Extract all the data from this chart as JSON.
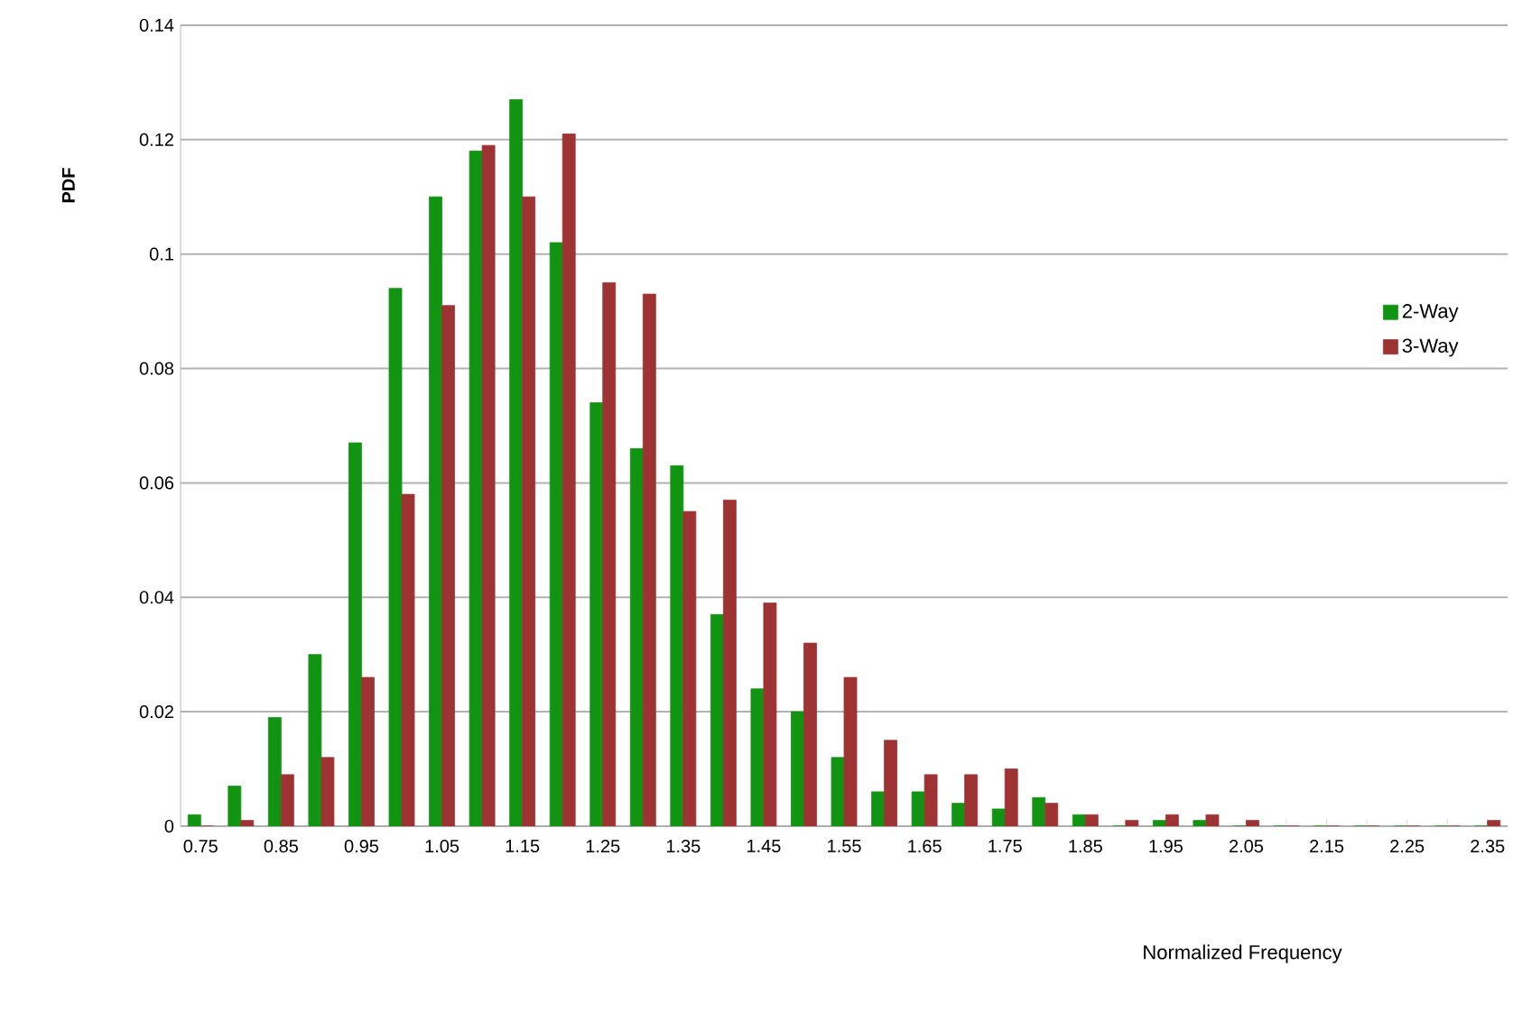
{
  "chart_data": {
    "type": "bar",
    "xlabel": "Normalized Frequency",
    "ylabel": "PDF",
    "categories": [
      "0.75",
      null,
      "0.85",
      null,
      "0.95",
      null,
      "1.05",
      null,
      "1.15",
      null,
      "1.25",
      null,
      "1.35",
      null,
      "1.45",
      null,
      "1.55",
      null,
      "1.65",
      null,
      "1.75",
      null,
      "1.85",
      null,
      "1.95",
      null,
      "2.05",
      null,
      "2.15",
      null,
      "2.25",
      null,
      "2.35"
    ],
    "series": [
      {
        "name": "2-Way",
        "color": "#119411",
        "values": [
          0.002,
          0.007,
          0.019,
          0.03,
          0.067,
          0.094,
          0.11,
          0.118,
          0.127,
          0.102,
          0.074,
          0.066,
          0.063,
          0.037,
          0.024,
          0.02,
          0.012,
          0.006,
          0.006,
          0.004,
          0.003,
          0.005,
          0.002,
          0,
          0.001,
          0.001,
          0,
          0,
          0,
          0,
          0,
          0,
          0
        ]
      },
      {
        "name": "3-Way",
        "color": "#9e3333",
        "values": [
          0,
          0.001,
          0.009,
          0.012,
          0.026,
          0.058,
          0.091,
          0.119,
          0.11,
          0.121,
          0.095,
          0.093,
          0.055,
          0.057,
          0.039,
          0.032,
          0.026,
          0.015,
          0.009,
          0.009,
          0.01,
          0.004,
          0.002,
          0.001,
          0.002,
          0.002,
          0.001,
          0,
          0,
          0,
          0,
          0,
          0.001
        ]
      }
    ],
    "ylim": [
      0,
      0.14
    ],
    "yticks": [
      0,
      0.02,
      0.04,
      0.06,
      0.08,
      0.1,
      0.12,
      0.14
    ],
    "grid": "y",
    "legend": "right"
  }
}
